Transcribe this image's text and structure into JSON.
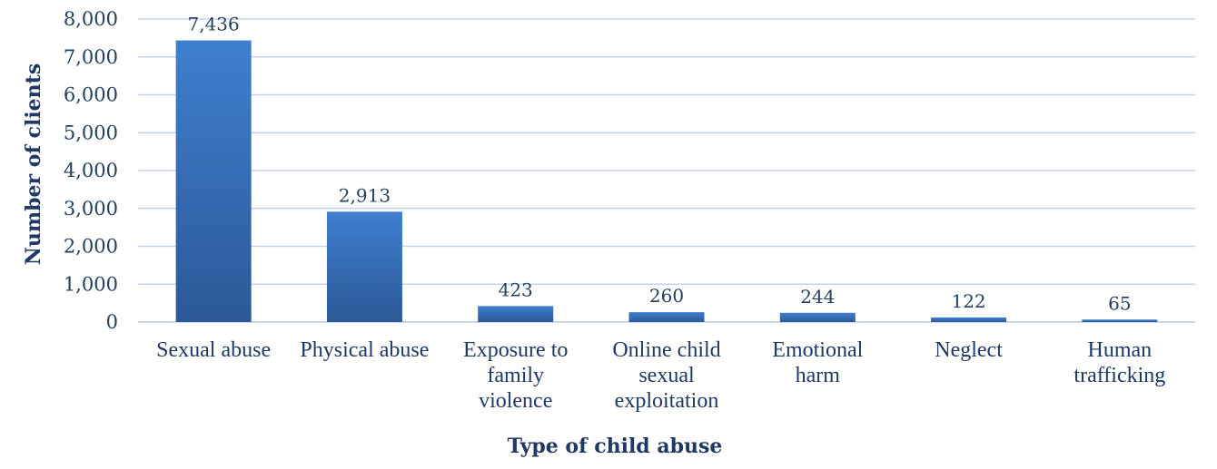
{
  "chart_data": {
    "type": "bar",
    "title": "",
    "xlabel": "Type of child abuse",
    "ylabel": "Number of clients",
    "categories": [
      "Sexual abuse",
      "Physical abuse",
      "Exposure to family violence",
      "Online child sexual exploitation",
      "Emotional harm",
      "Neglect",
      "Human trafficking"
    ],
    "category_lines": [
      [
        "Sexual abuse"
      ],
      [
        "Physical abuse"
      ],
      [
        "Exposure to",
        "family",
        "violence"
      ],
      [
        "Online child",
        "sexual",
        "exploitation"
      ],
      [
        "Emotional",
        "harm"
      ],
      [
        "Neglect"
      ],
      [
        "Human",
        "trafficking"
      ]
    ],
    "values": [
      7436,
      2913,
      423,
      260,
      244,
      122,
      65
    ],
    "data_labels": [
      "7,436",
      "2,913",
      "423",
      "260",
      "244",
      "122",
      "65"
    ],
    "ylim": [
      0,
      8000
    ],
    "yticks": [
      0,
      1000,
      2000,
      3000,
      4000,
      5000,
      6000,
      7000,
      8000
    ],
    "ytick_labels": [
      "0",
      "1,000",
      "2,000",
      "3,000",
      "4,000",
      "5,000",
      "6,000",
      "7,000",
      "8,000"
    ],
    "grid": true,
    "legend": "none",
    "bar_color_top": "#3f7fd0",
    "bar_color_bottom": "#2c5896",
    "text_color": "#1f3864"
  }
}
